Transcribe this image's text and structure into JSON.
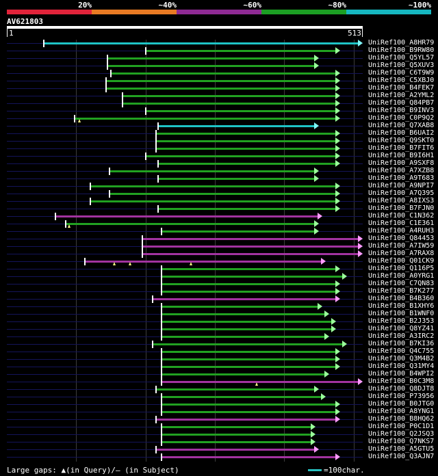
{
  "legend": {
    "labels": [
      "20%",
      "~40%",
      "~60%",
      "~80%",
      "~100%"
    ],
    "colors": [
      "#e1233a",
      "#e87a23",
      "#8e2a93",
      "#1c9e23",
      "#16b7c0"
    ]
  },
  "query": {
    "id": "AV621803",
    "start": "1",
    "end": "513",
    "length": 513
  },
  "footer": {
    "gaps_text": "Large gaps: ▲(in Query)/– (in Subject)",
    "scale_text": "=100char."
  },
  "hits": [
    {
      "label": "UniRef100_A8HR79",
      "start": 53,
      "end": 513,
      "color": "cyan"
    },
    {
      "label": "UniRef100_B9RW80",
      "start": 200,
      "end": 480,
      "color": "green"
    },
    {
      "label": "UniRef100_Q5YL57",
      "start": 145,
      "end": 450,
      "color": "green"
    },
    {
      "label": "UniRef100_Q5XUV3",
      "start": 145,
      "end": 450,
      "color": "green"
    },
    {
      "label": "UniRef100_C6T9W9",
      "start": 150,
      "end": 480,
      "color": "green"
    },
    {
      "label": "UniRef100_C5XBJ0",
      "start": 143,
      "end": 480,
      "color": "green"
    },
    {
      "label": "UniRef100_B4FEK7",
      "start": 143,
      "end": 480,
      "color": "green"
    },
    {
      "label": "UniRef100_A2YML2",
      "start": 167,
      "end": 480,
      "color": "green"
    },
    {
      "label": "UniRef100_Q84PB7",
      "start": 167,
      "end": 480,
      "color": "green"
    },
    {
      "label": "UniRef100_B9INV3",
      "start": 200,
      "end": 480,
      "color": "green"
    },
    {
      "label": "UniRef100_C0P9Q2",
      "start": 98,
      "end": 480,
      "color": "green",
      "gaps": [
        105
      ]
    },
    {
      "label": "UniRef100_Q7XAB8",
      "start": 218,
      "end": 450,
      "color": "cyan"
    },
    {
      "label": "UniRef100_B6UAI2",
      "start": 215,
      "end": 480,
      "color": "green"
    },
    {
      "label": "UniRef100_Q9SKT0",
      "start": 215,
      "end": 480,
      "color": "green"
    },
    {
      "label": "UniRef100_B7FIT6",
      "start": 215,
      "end": 480,
      "color": "green"
    },
    {
      "label": "UniRef100_B9I6H1",
      "start": 200,
      "end": 480,
      "color": "green"
    },
    {
      "label": "UniRef100_A9SXF8",
      "start": 218,
      "end": 480,
      "color": "green"
    },
    {
      "label": "UniRef100_A7XZB8",
      "start": 148,
      "end": 450,
      "color": "green"
    },
    {
      "label": "UniRef100_A9T683",
      "start": 218,
      "end": 450,
      "color": "green"
    },
    {
      "label": "UniRef100_A9NPI7",
      "start": 120,
      "end": 480,
      "color": "green"
    },
    {
      "label": "UniRef100_A7Q395",
      "start": 148,
      "end": 480,
      "color": "green"
    },
    {
      "label": "UniRef100_A8IXS3",
      "start": 120,
      "end": 480,
      "color": "green"
    },
    {
      "label": "UniRef100_B7FJN0",
      "start": 218,
      "end": 480,
      "color": "green"
    },
    {
      "label": "UniRef100_C1N362",
      "start": 70,
      "end": 455,
      "color": "purple"
    },
    {
      "label": "UniRef100_C1E361",
      "start": 85,
      "end": 450,
      "color": "green",
      "gaps": [
        90
      ]
    },
    {
      "label": "UniRef100_A4RUH3",
      "start": 223,
      "end": 450,
      "color": "green"
    },
    {
      "label": "UniRef100_Q84453",
      "start": 195,
      "end": 513,
      "color": "purple"
    },
    {
      "label": "UniRef100_A7IW59",
      "start": 195,
      "end": 513,
      "color": "purple"
    },
    {
      "label": "UniRef100_A7RAX8",
      "start": 195,
      "end": 513,
      "color": "purple"
    },
    {
      "label": "UniRef100_Q01CK9",
      "start": 112,
      "end": 460,
      "color": "purple",
      "gaps": [
        155,
        178,
        265
      ]
    },
    {
      "label": "UniRef100_Q116P5",
      "start": 223,
      "end": 480,
      "color": "green"
    },
    {
      "label": "UniRef100_A0YRG1",
      "start": 223,
      "end": 490,
      "color": "green"
    },
    {
      "label": "UniRef100_C7QN83",
      "start": 223,
      "end": 480,
      "color": "green"
    },
    {
      "label": "UniRef100_B7K277",
      "start": 223,
      "end": 480,
      "color": "green"
    },
    {
      "label": "UniRef100_B4B360",
      "start": 210,
      "end": 480,
      "color": "purple"
    },
    {
      "label": "UniRef100_B1XHY6",
      "start": 223,
      "end": 455,
      "color": "green"
    },
    {
      "label": "UniRef100_B1WNF0",
      "start": 223,
      "end": 465,
      "color": "green"
    },
    {
      "label": "UniRef100_B2J353",
      "start": 223,
      "end": 475,
      "color": "green"
    },
    {
      "label": "UniRef100_Q8YZ41",
      "start": 223,
      "end": 475,
      "color": "green"
    },
    {
      "label": "UniRef100_A3IRC2",
      "start": 223,
      "end": 465,
      "color": "green"
    },
    {
      "label": "UniRef100_B7KI36",
      "start": 210,
      "end": 490,
      "color": "green"
    },
    {
      "label": "UniRef100_Q4C755",
      "start": 223,
      "end": 480,
      "color": "green"
    },
    {
      "label": "UniRef100_Q3M4B2",
      "start": 223,
      "end": 480,
      "color": "green"
    },
    {
      "label": "UniRef100_Q31MY4",
      "start": 223,
      "end": 480,
      "color": "green"
    },
    {
      "label": "UniRef100_B4WPI2",
      "start": 223,
      "end": 465,
      "color": "green"
    },
    {
      "label": "UniRef100_B0C3M8",
      "start": 223,
      "end": 513,
      "color": "purple",
      "gaps": [
        360
      ]
    },
    {
      "label": "UniRef100_Q8DJT8",
      "start": 215,
      "end": 450,
      "color": "green"
    },
    {
      "label": "UniRef100_P73956",
      "start": 223,
      "end": 460,
      "color": "green"
    },
    {
      "label": "UniRef100_B0JTG0",
      "start": 223,
      "end": 480,
      "color": "green"
    },
    {
      "label": "UniRef100_A8YNG1",
      "start": 223,
      "end": 480,
      "color": "green"
    },
    {
      "label": "UniRef100_B8HQ62",
      "start": 215,
      "end": 480,
      "color": "purple"
    },
    {
      "label": "UniRef100_P0C1D1",
      "start": 223,
      "end": 445,
      "color": "green"
    },
    {
      "label": "UniRef100_Q2JSQ3",
      "start": 223,
      "end": 445,
      "color": "green"
    },
    {
      "label": "UniRef100_Q7NKS7",
      "start": 223,
      "end": 445,
      "color": "green"
    },
    {
      "label": "UniRef100_A5GTU5",
      "start": 215,
      "end": 450,
      "color": "purple"
    },
    {
      "label": "UniRef100_Q3AJN7",
      "start": 223,
      "end": 480,
      "color": "purple"
    }
  ]
}
